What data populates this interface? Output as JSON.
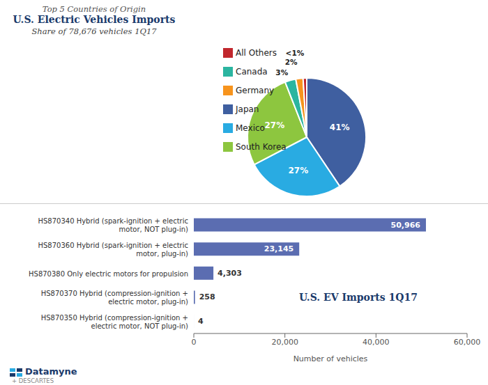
{
  "chart_data": [
    {
      "type": "pie",
      "supertitle": "Top 5 Countries of Origin",
      "title": "U.S. Electric Vehicles Imports",
      "subtitle": "Share of 78,676 vehicles 1Q17",
      "categories": [
        "Japan",
        "Mexico",
        "South Korea",
        "Canada",
        "Germany",
        "All Others"
      ],
      "values": [
        41,
        27,
        27,
        3,
        2,
        1
      ],
      "value_labels": [
        "41%",
        "27%",
        "27%",
        "3%",
        "2%",
        "<1%"
      ],
      "colors": [
        "#3f5fa0",
        "#29abe2",
        "#8dc63f",
        "#2bb5a0",
        "#f7941d",
        "#c1272d"
      ],
      "data_labels": true,
      "legend": "right"
    },
    {
      "type": "bar",
      "orientation": "horizontal",
      "categories": [
        "HS870340 Hybrid (spark-ignition + electric motor, NOT plug-in)",
        "HS870360 Hybrid (spark-ignition + electric motor, plug-in)",
        "HS870380 Only electric motors for propulsion",
        "HS870370 Hybrid (compression-ignition + electric motor, plug-in)",
        "HS870350 Hybrid (compression-ignition + electric motor, NOT plug-in)"
      ],
      "values": [
        50966,
        23145,
        4303,
        258,
        4
      ],
      "value_labels": [
        "50,966",
        "23,145",
        "4,303",
        "258",
        "4"
      ],
      "color": "#5b6db1",
      "xlabel": "Number of vehicles",
      "xlim": [
        0,
        60000
      ],
      "xticks": [
        0,
        {
          "value": 20000,
          "label": "20,000"
        },
        {
          "value": 40000,
          "label": "40,000"
        },
        {
          "value": 60000,
          "label": "60,000"
        }
      ],
      "data_labels": true,
      "grid": false,
      "annotation": "U.S. EV Imports 1Q17",
      "source": [
        "Datamyne",
        "+ DESCARTES"
      ]
    }
  ]
}
